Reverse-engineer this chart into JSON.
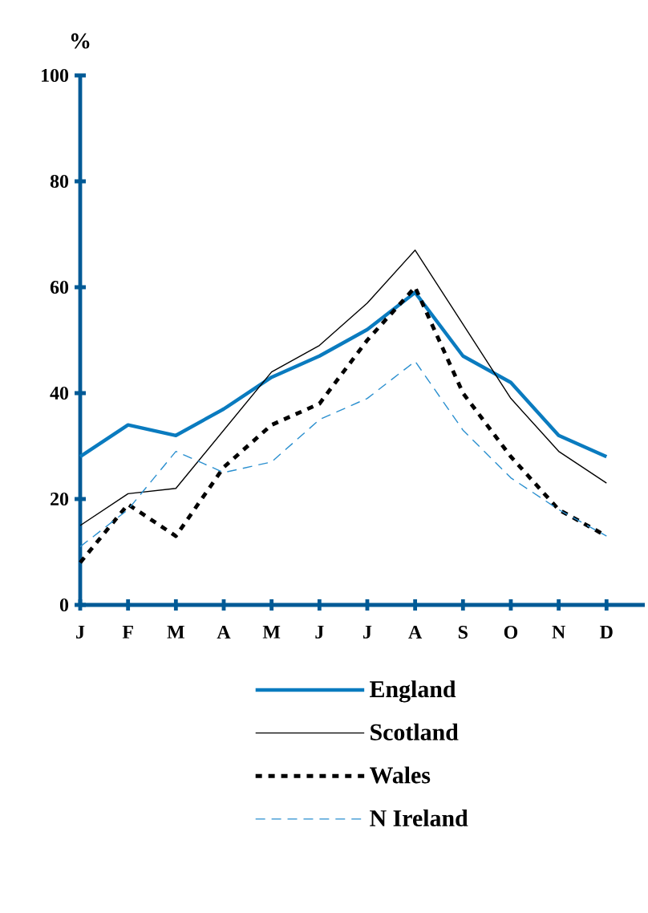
{
  "chart_data": {
    "type": "line",
    "ylabel": "%",
    "categories": [
      "J",
      "F",
      "M",
      "A",
      "M",
      "J",
      "J",
      "A",
      "S",
      "O",
      "N",
      "D"
    ],
    "series": [
      {
        "name": "England",
        "color": "#0a7bbf",
        "line_style": "solid",
        "values": [
          28,
          34,
          32,
          37,
          43,
          47,
          52,
          59,
          47,
          42,
          32,
          28
        ]
      },
      {
        "name": "Scotland",
        "color": "#000000",
        "line_style": "solid",
        "values": [
          15,
          21,
          22,
          33,
          44,
          49,
          57,
          67,
          53,
          39,
          29,
          23
        ]
      },
      {
        "name": "Wales",
        "color": "#000000",
        "line_style": "dotted",
        "values": [
          8,
          19,
          13,
          26,
          34,
          38,
          50,
          60,
          40,
          28,
          18,
          13
        ]
      },
      {
        "name": "N Ireland",
        "color": "#2a8fcf",
        "line_style": "dashed",
        "values": [
          11,
          18,
          29,
          25,
          27,
          35,
          39,
          46,
          33,
          24,
          18,
          13
        ]
      }
    ],
    "ylim": [
      0,
      100
    ],
    "yticks": [
      0,
      20,
      40,
      60,
      80,
      100
    ],
    "legend": "bottom",
    "grid": false,
    "marker": "none"
  }
}
